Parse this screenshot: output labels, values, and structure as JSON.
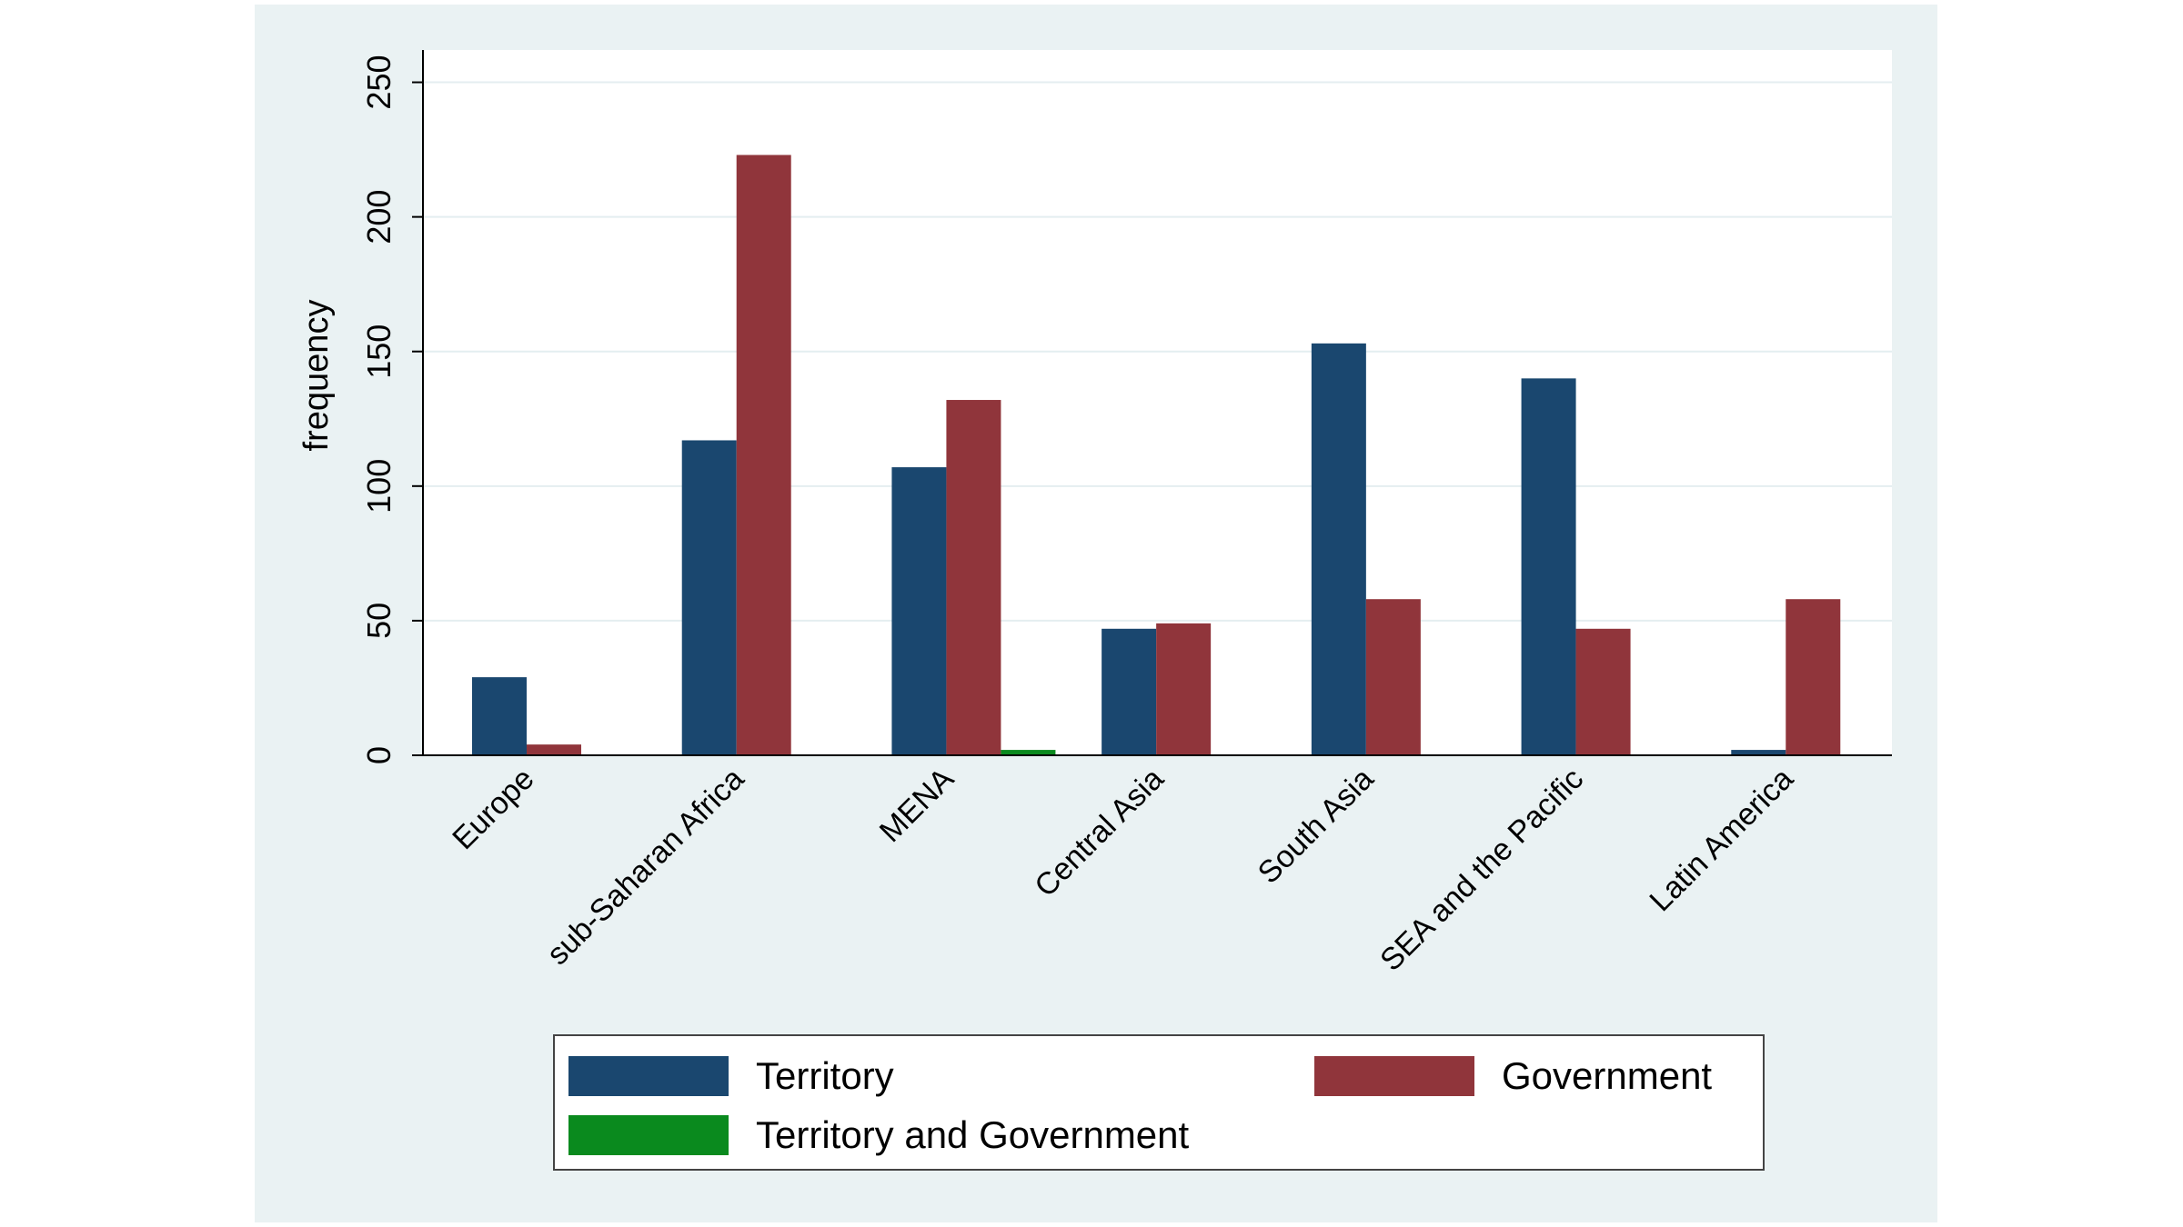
{
  "chart_data": {
    "type": "bar",
    "title": "",
    "xlabel": "",
    "ylabel": "frequency",
    "ylim": [
      0,
      262
    ],
    "yticks": [
      0,
      50,
      100,
      150,
      200,
      250
    ],
    "grid": true,
    "categories": [
      "Europe",
      "sub-Saharan Africa",
      "MENA",
      "Central Asia",
      "South Asia",
      "SEA and the Pacific",
      "Latin America"
    ],
    "series": [
      {
        "name": "Territory",
        "color": "#1a476f",
        "values": [
          29,
          117,
          107,
          47,
          153,
          140,
          2
        ]
      },
      {
        "name": "Government",
        "color": "#90353b",
        "values": [
          4,
          223,
          132,
          49,
          58,
          47,
          58
        ]
      },
      {
        "name": "Territory and Government",
        "color": "#0a8a1e",
        "values": [
          0,
          0,
          2,
          0,
          0,
          0,
          0
        ]
      }
    ],
    "legend_position": "bottom"
  },
  "legend": {
    "items": [
      {
        "label": "Territory",
        "color": "#1a476f"
      },
      {
        "label": "Government",
        "color": "#90353b"
      },
      {
        "label": "Territory and Government",
        "color": "#0a8a1e"
      }
    ]
  }
}
